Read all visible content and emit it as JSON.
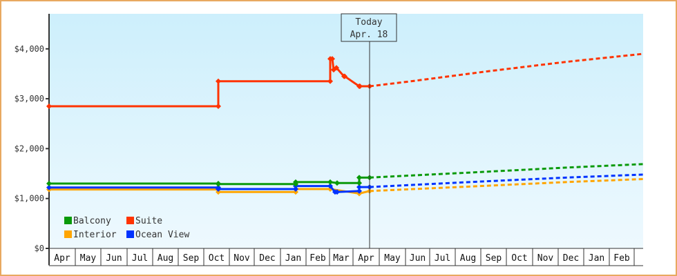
{
  "chart_data": {
    "type": "line",
    "title": "",
    "xlabel": "",
    "ylabel": "",
    "ylim": [
      0,
      4700
    ],
    "y_ticks": [
      "$0",
      "$1,000",
      "$2,000",
      "$3,000",
      "$4,000"
    ],
    "y_tick_values": [
      0,
      1000,
      2000,
      3000,
      4000
    ],
    "x_ticks": [
      "Apr",
      "May",
      "Jun",
      "Jul",
      "Aug",
      "Sep",
      "Oct",
      "Nov",
      "Dec",
      "Jan",
      "Feb",
      "Mar",
      "Apr",
      "May",
      "Jun",
      "Jul",
      "Aug",
      "Sep",
      "Oct",
      "Nov",
      "Dec",
      "Jan",
      "Feb"
    ],
    "today_marker": {
      "line1": "Today",
      "line2": "Apr. 18"
    },
    "legend": [
      {
        "name": "Balcony",
        "color": "#0a9a0a"
      },
      {
        "name": "Suite",
        "color": "#ff3300"
      },
      {
        "name": "Interior",
        "color": "#ffa500"
      },
      {
        "name": "Ocean View",
        "color": "#0033ff"
      }
    ],
    "legend_position": "lower-left",
    "series": [
      {
        "name": "Suite",
        "color": "#ff3300",
        "historical": [
          [
            "Apr",
            2850
          ],
          [
            "Oct",
            2850
          ],
          [
            "Oct",
            3350
          ],
          [
            "Mar",
            3350
          ],
          [
            "Mar",
            3800
          ],
          [
            "Mar",
            3580
          ],
          [
            "Mar",
            3620
          ],
          [
            "Mar",
            3450
          ],
          [
            "Apr",
            3450
          ],
          [
            "Apr",
            3250
          ],
          [
            "Apr 18",
            3250
          ]
        ],
        "forecast": [
          [
            "Apr 18",
            3250
          ],
          [
            "Jun",
            3350
          ],
          [
            "Sep",
            3550
          ],
          [
            "Dec",
            3740
          ],
          [
            "Feb",
            3900
          ]
        ]
      },
      {
        "name": "Balcony",
        "color": "#0a9a0a",
        "historical": [
          [
            "Apr",
            1300
          ],
          [
            "Oct",
            1300
          ],
          [
            "Oct",
            1290
          ],
          [
            "Jan",
            1290
          ],
          [
            "Jan",
            1330
          ],
          [
            "Mar",
            1330
          ],
          [
            "Mar",
            1310
          ],
          [
            "Apr",
            1310
          ],
          [
            "Apr",
            1420
          ],
          [
            "Apr 18",
            1420
          ]
        ],
        "forecast": [
          [
            "Apr 18",
            1420
          ],
          [
            "Aug",
            1520
          ],
          [
            "Dec",
            1620
          ],
          [
            "Feb",
            1690
          ]
        ]
      },
      {
        "name": "Ocean View",
        "color": "#0033ff",
        "historical": [
          [
            "Apr",
            1220
          ],
          [
            "Oct",
            1220
          ],
          [
            "Oct",
            1190
          ],
          [
            "Jan",
            1190
          ],
          [
            "Jan",
            1250
          ],
          [
            "Mar",
            1250
          ],
          [
            "Mar",
            1130
          ],
          [
            "Mar",
            1130
          ],
          [
            "Apr",
            1150
          ],
          [
            "Apr",
            1230
          ],
          [
            "Apr 18",
            1230
          ]
        ],
        "forecast": [
          [
            "Apr 18",
            1230
          ],
          [
            "Aug",
            1330
          ],
          [
            "Dec",
            1420
          ],
          [
            "Feb",
            1480
          ]
        ]
      },
      {
        "name": "Interior",
        "color": "#ffa500",
        "historical": [
          [
            "Apr",
            1180
          ],
          [
            "Oct",
            1180
          ],
          [
            "Oct",
            1130
          ],
          [
            "Jan",
            1130
          ],
          [
            "Jan",
            1190
          ],
          [
            "Mar",
            1190
          ],
          [
            "Mar",
            1100
          ],
          [
            "Apr",
            1100
          ],
          [
            "Apr",
            1150
          ],
          [
            "Apr 18",
            1150
          ]
        ],
        "forecast": [
          [
            "Apr 18",
            1150
          ],
          [
            "Aug",
            1240
          ],
          [
            "Dec",
            1330
          ],
          [
            "Feb",
            1390
          ]
        ]
      }
    ],
    "grid": false,
    "background": "light-blue gradient"
  }
}
